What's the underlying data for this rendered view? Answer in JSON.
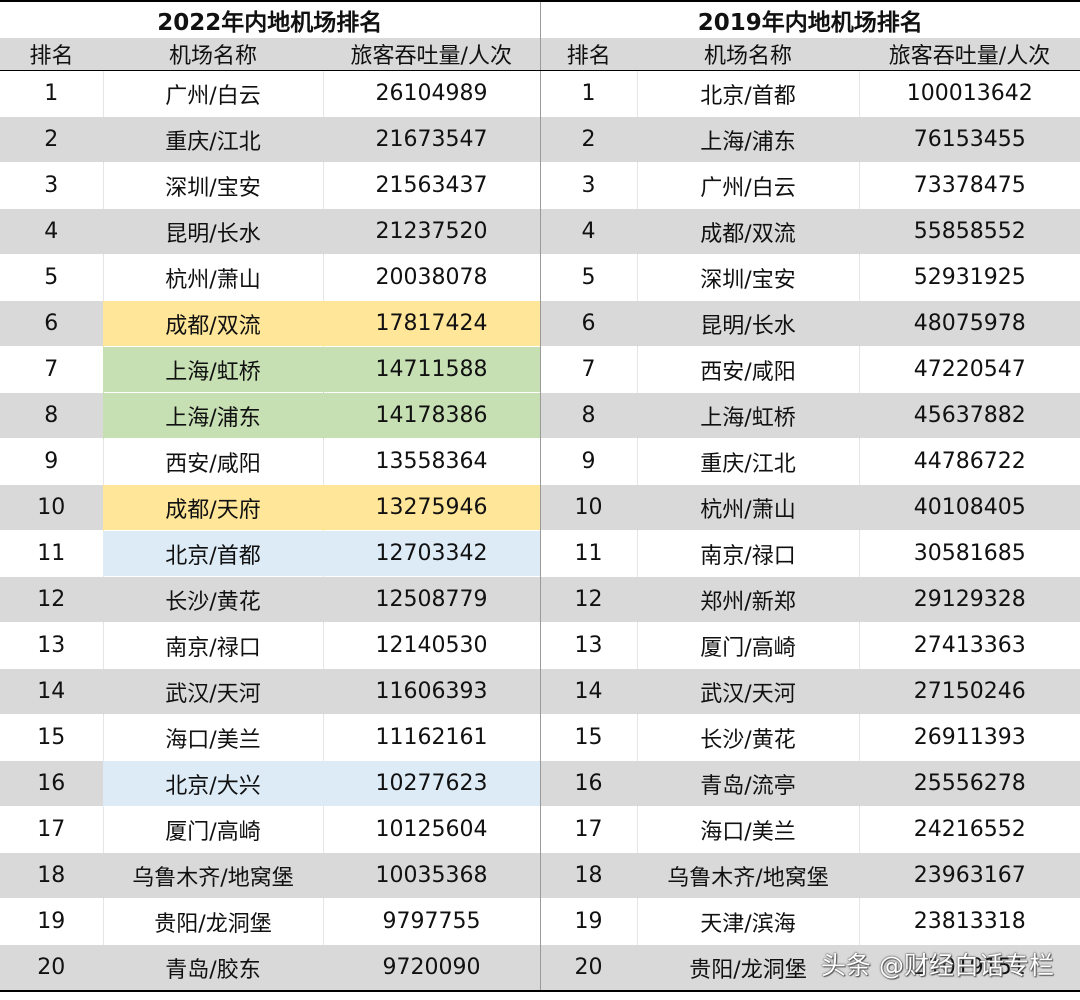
{
  "left_table": {
    "title": "2022年内地机场排名",
    "headers": [
      "排名",
      "机场名称",
      "旅客吞吐量/人次"
    ],
    "rows": [
      {
        "rank": "1",
        "airport": "广州/白云",
        "passengers": "26104989"
      },
      {
        "rank": "2",
        "airport": "重庆/江北",
        "passengers": "21673547"
      },
      {
        "rank": "3",
        "airport": "深圳/宝安",
        "passengers": "21563437"
      },
      {
        "rank": "4",
        "airport": "昆明/长水",
        "passengers": "21237520"
      },
      {
        "rank": "5",
        "airport": "杭州/萧山",
        "passengers": "20038078"
      },
      {
        "rank": "6",
        "airport": "成都/双流",
        "passengers": "17817424"
      },
      {
        "rank": "7",
        "airport": "上海/虹桥",
        "passengers": "14711588"
      },
      {
        "rank": "8",
        "airport": "上海/浦东",
        "passengers": "14178386"
      },
      {
        "rank": "9",
        "airport": "西安/咸阳",
        "passengers": "13558364"
      },
      {
        "rank": "10",
        "airport": "成都/天府",
        "passengers": "13275946"
      },
      {
        "rank": "11",
        "airport": "北京/首都",
        "passengers": "12703342"
      },
      {
        "rank": "12",
        "airport": "长沙/黄花",
        "passengers": "12508779"
      },
      {
        "rank": "13",
        "airport": "南京/禄口",
        "passengers": "12140530"
      },
      {
        "rank": "14",
        "airport": "武汉/天河",
        "passengers": "11606393"
      },
      {
        "rank": "15",
        "airport": "海口/美兰",
        "passengers": "11162161"
      },
      {
        "rank": "16",
        "airport": "北京/大兴",
        "passengers": "10277623"
      },
      {
        "rank": "17",
        "airport": "厦门/高崎",
        "passengers": "10125604"
      },
      {
        "rank": "18",
        "airport": "乌鲁木齐/地窝堡",
        "passengers": "10035368"
      },
      {
        "rank": "19",
        "airport": "贵阳/龙洞堡",
        "passengers": "9797755"
      },
      {
        "rank": "20",
        "airport": "青岛/胶东",
        "passengers": "9720090"
      }
    ]
  },
  "right_table": {
    "title": "2019年内地机场排名",
    "headers": [
      "排名",
      "机场名称",
      "旅客吞吐量/人次"
    ],
    "rows": [
      {
        "rank": "1",
        "airport": "北京/首都",
        "passengers": "100013642"
      },
      {
        "rank": "2",
        "airport": "上海/浦东",
        "passengers": "76153455"
      },
      {
        "rank": "3",
        "airport": "广州/白云",
        "passengers": "73378475"
      },
      {
        "rank": "4",
        "airport": "成都/双流",
        "passengers": "55858552"
      },
      {
        "rank": "5",
        "airport": "深圳/宝安",
        "passengers": "52931925"
      },
      {
        "rank": "6",
        "airport": "昆明/长水",
        "passengers": "48075978"
      },
      {
        "rank": "7",
        "airport": "西安/咸阳",
        "passengers": "47220547"
      },
      {
        "rank": "8",
        "airport": "上海/虹桥",
        "passengers": "45637882"
      },
      {
        "rank": "9",
        "airport": "重庆/江北",
        "passengers": "44786722"
      },
      {
        "rank": "10",
        "airport": "杭州/萧山",
        "passengers": "40108405"
      },
      {
        "rank": "11",
        "airport": "南京/禄口",
        "passengers": "30581685"
      },
      {
        "rank": "12",
        "airport": "郑州/新郑",
        "passengers": "29129328"
      },
      {
        "rank": "13",
        "airport": "厦门/高崎",
        "passengers": "27413363"
      },
      {
        "rank": "14",
        "airport": "武汉/天河",
        "passengers": "27150246"
      },
      {
        "rank": "15",
        "airport": "长沙/黄花",
        "passengers": "26911393"
      },
      {
        "rank": "16",
        "airport": "青岛/流亭",
        "passengers": "25556278"
      },
      {
        "rank": "17",
        "airport": "海口/美兰",
        "passengers": "24216552"
      },
      {
        "rank": "18",
        "airport": "乌鲁木齐/地窝堡",
        "passengers": "23963167"
      },
      {
        "rank": "19",
        "airport": "天津/滨海",
        "passengers": "23813318"
      },
      {
        "rank": "20",
        "airport": "贵阳/龙洞堡",
        "passengers": "21019151"
      }
    ]
  },
  "highlights": {
    "yellow_rows_2022": [
      "6",
      "10"
    ],
    "green_rows_2022": [
      "7",
      "8"
    ],
    "blue_rows_2022": [
      "11",
      "16"
    ],
    "colors": {
      "yellow": "#ffe699",
      "green": "#c6e0b4",
      "blue": "#ddebf7",
      "stripe": "#d9d9d9"
    }
  },
  "watermark": "头条 @财经白话专栏"
}
